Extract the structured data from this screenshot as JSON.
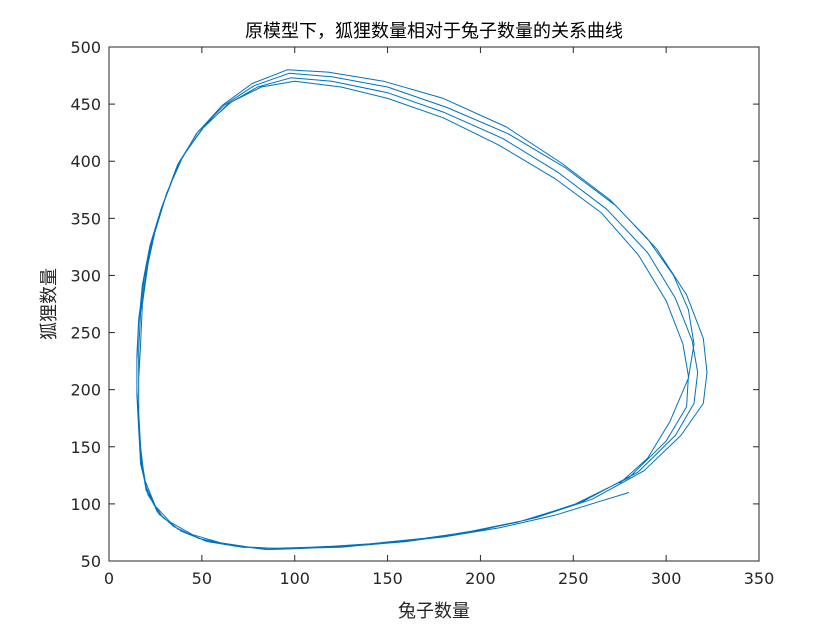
{
  "chart_data": {
    "type": "line",
    "title": "原模型下，狐狸数量相对于兔子数量的关系曲线",
    "xlabel": "兔子数量",
    "ylabel": "狐狸数量",
    "xlim": [
      0,
      350
    ],
    "ylim": [
      50,
      500
    ],
    "xticks": [
      0,
      50,
      100,
      150,
      200,
      250,
      300,
      350
    ],
    "yticks": [
      50,
      100,
      150,
      200,
      250,
      300,
      350,
      400,
      450,
      500
    ],
    "grid": false,
    "legend": "none",
    "colors": {
      "line": "#0072BD",
      "axis": "#262626",
      "background": "#ffffff"
    },
    "series": [
      {
        "points": [
          [
            280,
            110
          ],
          [
            262,
            101
          ],
          [
            240,
            90
          ],
          [
            210,
            79
          ],
          [
            180,
            71
          ],
          [
            150,
            66
          ],
          [
            125,
            62
          ],
          [
            100,
            61
          ],
          [
            80,
            61
          ],
          [
            60,
            66
          ],
          [
            45,
            73
          ],
          [
            33,
            84
          ],
          [
            25,
            98
          ],
          [
            19,
            122
          ],
          [
            17,
            150
          ],
          [
            16,
            180
          ],
          [
            16,
            210
          ],
          [
            17,
            240
          ],
          [
            18,
            275
          ],
          [
            21,
            310
          ],
          [
            25,
            340
          ],
          [
            31,
            372
          ],
          [
            40,
            405
          ],
          [
            52,
            432
          ],
          [
            66,
            452
          ],
          [
            82,
            465
          ],
          [
            100,
            470
          ],
          [
            125,
            465
          ],
          [
            150,
            455
          ],
          [
            180,
            438
          ],
          [
            210,
            414
          ],
          [
            240,
            385
          ],
          [
            265,
            355
          ],
          [
            285,
            318
          ],
          [
            300,
            278
          ],
          [
            309,
            240
          ],
          [
            312,
            212
          ],
          [
            311,
            185
          ],
          [
            300,
            155
          ],
          [
            280,
            123
          ],
          [
            250,
            99
          ],
          [
            220,
            84
          ],
          [
            190,
            74
          ],
          [
            160,
            67
          ],
          [
            130,
            63
          ],
          [
            105,
            61
          ],
          [
            85,
            60
          ],
          [
            65,
            64
          ],
          [
            48,
            70
          ],
          [
            35,
            80
          ],
          [
            26,
            93
          ],
          [
            20,
            115
          ],
          [
            17,
            145
          ],
          [
            16,
            175
          ],
          [
            16,
            205
          ],
          [
            16,
            235
          ],
          [
            17,
            268
          ],
          [
            20,
            302
          ],
          [
            24,
            334
          ],
          [
            30,
            366
          ],
          [
            38,
            400
          ],
          [
            50,
            428
          ],
          [
            64,
            450
          ],
          [
            80,
            465
          ],
          [
            98,
            473
          ],
          [
            120,
            470
          ],
          [
            150,
            460
          ],
          [
            180,
            443
          ],
          [
            212,
            420
          ],
          [
            242,
            390
          ],
          [
            268,
            358
          ],
          [
            290,
            320
          ],
          [
            305,
            280
          ],
          [
            314,
            243
          ],
          [
            317,
            215
          ],
          [
            315,
            188
          ],
          [
            305,
            160
          ],
          [
            285,
            128
          ],
          [
            255,
            102
          ],
          [
            225,
            86
          ],
          [
            195,
            76
          ],
          [
            165,
            68
          ],
          [
            135,
            64
          ],
          [
            108,
            62
          ],
          [
            88,
            61
          ],
          [
            68,
            63
          ],
          [
            50,
            69
          ],
          [
            37,
            78
          ],
          [
            27,
            91
          ],
          [
            20,
            112
          ],
          [
            17,
            140
          ],
          [
            16,
            170
          ],
          [
            15,
            200
          ],
          [
            15,
            230
          ],
          [
            16,
            262
          ],
          [
            19,
            298
          ],
          [
            23,
            330
          ],
          [
            29,
            362
          ],
          [
            37,
            397
          ],
          [
            48,
            426
          ],
          [
            62,
            449
          ],
          [
            78,
            466
          ],
          [
            97,
            477
          ],
          [
            120,
            474
          ],
          [
            150,
            465
          ],
          [
            182,
            447
          ],
          [
            215,
            424
          ],
          [
            246,
            394
          ],
          [
            273,
            361
          ],
          [
            295,
            323
          ],
          [
            311,
            283
          ],
          [
            320,
            245
          ],
          [
            322,
            215
          ],
          [
            320,
            188
          ],
          [
            308,
            160
          ],
          [
            288,
            129
          ],
          [
            260,
            104
          ],
          [
            230,
            88
          ],
          [
            200,
            77
          ],
          [
            170,
            70
          ],
          [
            140,
            65
          ],
          [
            112,
            62
          ],
          [
            92,
            61
          ],
          [
            72,
            62
          ],
          [
            53,
            67
          ],
          [
            39,
            76
          ],
          [
            29,
            88
          ],
          [
            21,
            108
          ],
          [
            17,
            135
          ],
          [
            16,
            165
          ],
          [
            15,
            195
          ],
          [
            15,
            225
          ],
          [
            16,
            258
          ],
          [
            18,
            292
          ],
          [
            22,
            326
          ],
          [
            28,
            358
          ],
          [
            36,
            393
          ],
          [
            47,
            424
          ],
          [
            61,
            449
          ],
          [
            77,
            468
          ],
          [
            96,
            480
          ],
          [
            118,
            478
          ],
          [
            148,
            470
          ],
          [
            180,
            455
          ],
          [
            214,
            430
          ],
          [
            244,
            398
          ],
          [
            270,
            366
          ],
          [
            290,
            332
          ],
          [
            304,
            300
          ],
          [
            312,
            270
          ],
          [
            315,
            240
          ],
          [
            312,
            210
          ],
          [
            302,
            172
          ],
          [
            290,
            140
          ],
          [
            275,
            118
          ]
        ]
      }
    ]
  }
}
